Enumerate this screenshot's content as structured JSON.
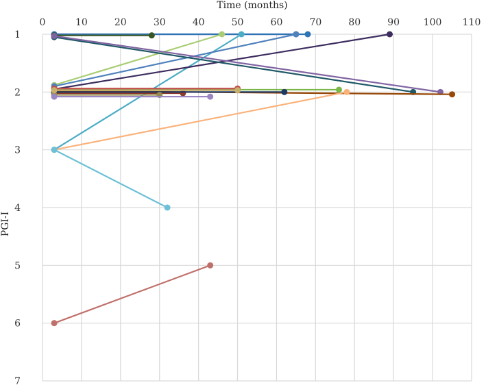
{
  "chart_data": {
    "type": "line",
    "title": "",
    "xlabel": "Time (months)",
    "ylabel": "PGI-I",
    "xlim": [
      0,
      110
    ],
    "ylim": [
      1,
      7
    ],
    "y_inverted": true,
    "grid": true,
    "x_ticks": [
      0,
      10,
      20,
      30,
      40,
      50,
      60,
      70,
      80,
      90,
      100,
      110
    ],
    "y_ticks": [
      1,
      2,
      3,
      4,
      5,
      6,
      7
    ],
    "series": [
      {
        "color": "#4f4f9f",
        "points": [
          [
            3,
            1
          ],
          [
            65,
            1
          ]
        ]
      },
      {
        "color": "#2e75b6",
        "points": [
          [
            3,
            1
          ],
          [
            68,
            1
          ]
        ]
      },
      {
        "color": "#375623",
        "points": [
          [
            3,
            1.02
          ],
          [
            28,
            1.02
          ]
        ]
      },
      {
        "color": "#a9cd74",
        "points": [
          [
            3,
            1.88
          ],
          [
            46,
            1
          ]
        ]
      },
      {
        "color": "#4bacc6",
        "points": [
          [
            3,
            3
          ],
          [
            51,
            1
          ]
        ]
      },
      {
        "color": "#4f81bd",
        "points": [
          [
            3,
            1.9
          ],
          [
            65,
            1
          ]
        ]
      },
      {
        "color": "#3d2c5e",
        "points": [
          [
            3,
            1.95
          ],
          [
            89,
            1
          ]
        ]
      },
      {
        "color": "#215967",
        "points": [
          [
            3,
            1.05
          ],
          [
            95,
            2
          ]
        ]
      },
      {
        "color": "#8064a2",
        "points": [
          [
            3,
            1.03
          ],
          [
            102,
            2
          ]
        ]
      },
      {
        "color": "#984807",
        "points": [
          [
            3,
            1.98
          ],
          [
            105,
            2.04
          ]
        ]
      },
      {
        "color": "#7ab648",
        "points": [
          [
            3,
            1.96
          ],
          [
            76,
            1.96
          ]
        ]
      },
      {
        "color": "#fab27b",
        "points": [
          [
            3,
            3
          ],
          [
            78,
            2
          ]
        ]
      },
      {
        "color": "#c0504d",
        "points": [
          [
            3,
            1.94
          ],
          [
            50,
            1.94
          ]
        ]
      },
      {
        "color": "#8c3a2b",
        "points": [
          [
            3,
            2.02
          ],
          [
            36,
            2.02
          ]
        ]
      },
      {
        "color": "#1f3864",
        "points": [
          [
            3,
            2.0
          ],
          [
            62,
            2.0
          ]
        ]
      },
      {
        "color": "#948a54",
        "points": [
          [
            3,
            2.05
          ],
          [
            30,
            2.05
          ]
        ]
      },
      {
        "color": "#9b86c4",
        "points": [
          [
            3,
            2.08
          ],
          [
            43,
            2.08
          ]
        ]
      },
      {
        "color": "#c6b06b",
        "points": [
          [
            3,
            1.97
          ],
          [
            50,
            1.97
          ]
        ]
      },
      {
        "color": "#6dc0d6",
        "points": [
          [
            3,
            3
          ],
          [
            32,
            4
          ]
        ]
      },
      {
        "color": "#c0706a",
        "points": [
          [
            3,
            6
          ],
          [
            43,
            5
          ]
        ]
      }
    ]
  }
}
